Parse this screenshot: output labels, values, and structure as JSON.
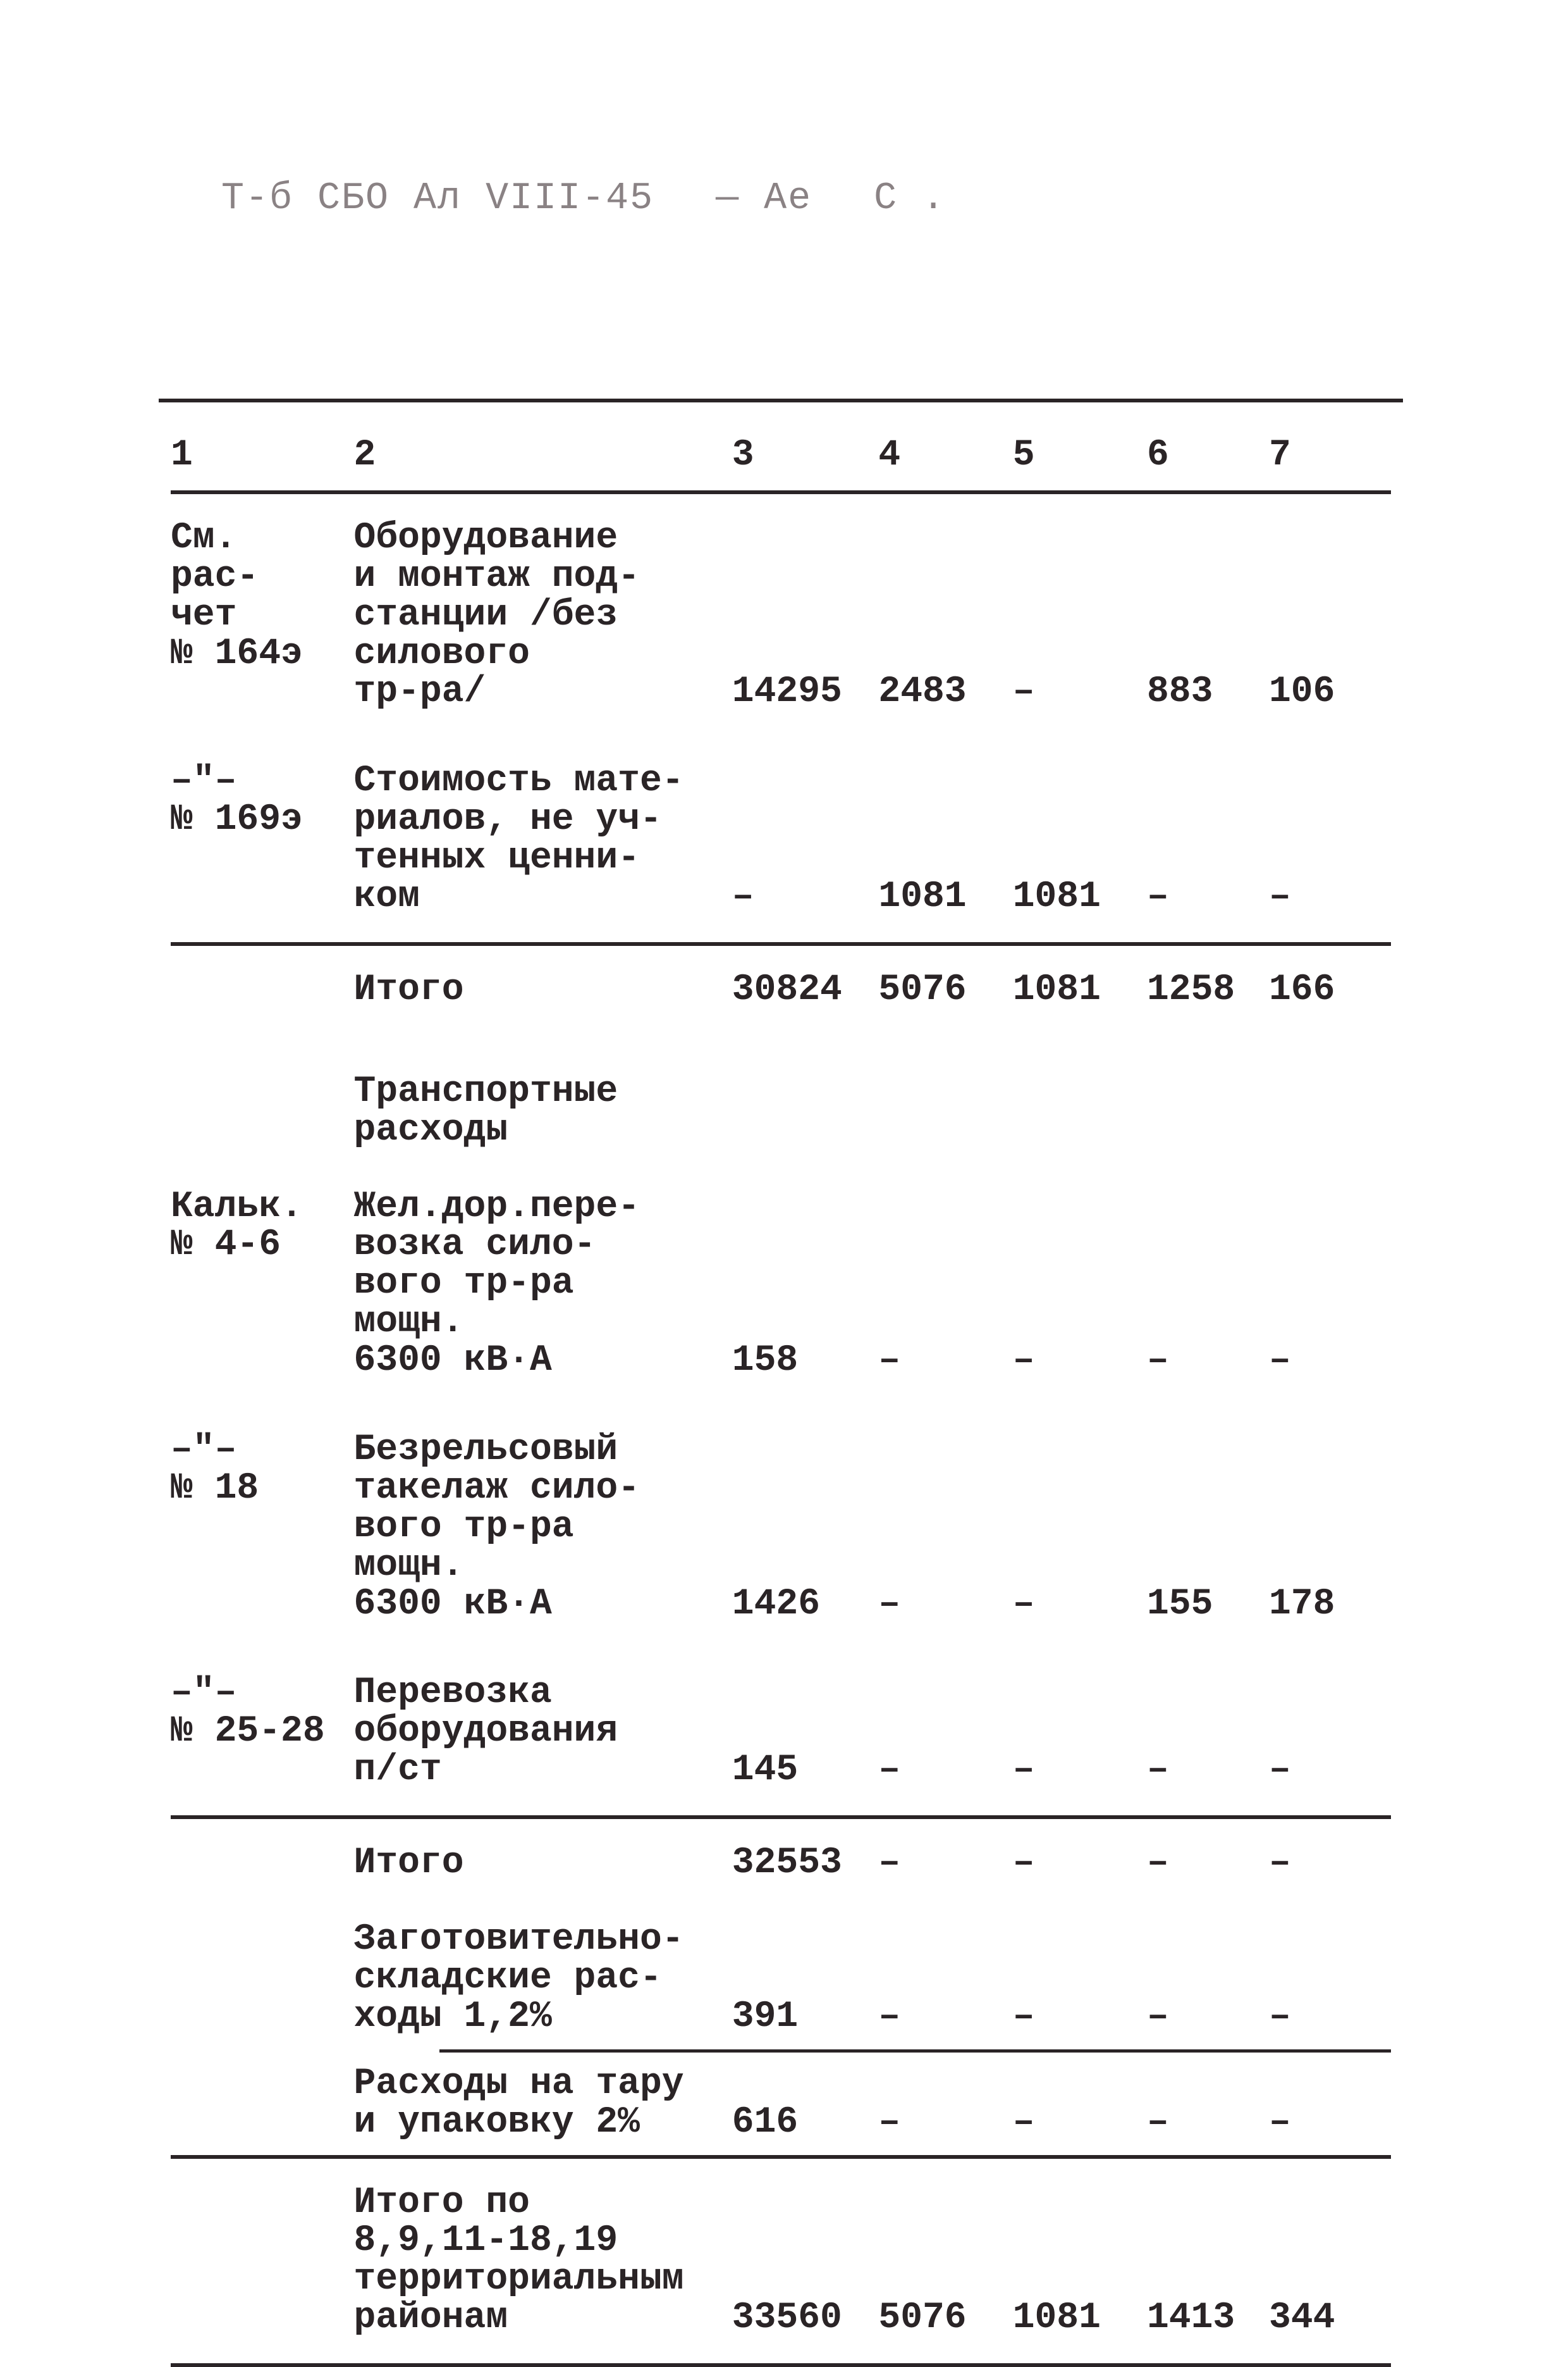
{
  "header": {
    "left": "Т-б СБО Ал VIII-45",
    "mid": "—   Ае",
    "right": "С  ."
  },
  "columns": [
    "1",
    "2",
    "3",
    "4",
    "5",
    "6",
    "7"
  ],
  "rows": [
    {
      "ruleTop": true
    },
    {
      "c1": "См.\nрас-\nчет\n№ 164э",
      "c2": "Оборудование\nи монтаж под-\nстанции /без\nсилового\nтр-ра/",
      "c3": "14295",
      "c4": "2483",
      "c5": "–",
      "c6": "883",
      "c7": "106"
    },
    {
      "c1": "–\"–\n№ 169э",
      "c2": "Стоимость мате-\nриалов, не уч-\nтенных ценни-\nком",
      "c3": "–",
      "c4": "1081",
      "c5": "1081",
      "c6": "–",
      "c7": "–"
    },
    {
      "ruleMid": true
    },
    {
      "c1": "",
      "c2": "Итого",
      "c3": "30824",
      "c4": "5076",
      "c5": "1081",
      "c6": "1258",
      "c7": "166"
    },
    {
      "c1": "",
      "c2": "Транспортные\nрасходы",
      "section": true
    },
    {
      "c1": "Кальк.\n№ 4-6",
      "c2": "Жел.дор.пере-\nвозка сило-\nвого тр-ра\nмощн.\n6300 кВ·А",
      "c3": "158",
      "c4": "–",
      "c5": "–",
      "c6": "–",
      "c7": "–"
    },
    {
      "c1": "–\"–\n№ 18",
      "c2": "Безрельсовый\nтакелаж сило-\nвого тр-ра\nмощн.\n6300 кВ·А",
      "c3": "1426",
      "c4": "–",
      "c5": "–",
      "c6": "155",
      "c7": "178"
    },
    {
      "c1": "–\"–\n№ 25-28",
      "c2": "Перевозка\nоборудования\nп/ст",
      "c3": "145",
      "c4": "–",
      "c5": "–",
      "c6": "–",
      "c7": "–"
    },
    {
      "ruleMid": true
    },
    {
      "c1": "",
      "c2": "Итого",
      "c3": "32553",
      "c4": "–",
      "c5": "–",
      "c6": "–",
      "c7": "–"
    },
    {
      "c1": "",
      "c2": "Заготовительно-\nскладские рас-\nходы 1,2%",
      "c3": "391",
      "c4": "–",
      "c5": "–",
      "c6": "–",
      "c7": "–",
      "tight": true
    },
    {
      "ruleThin": true
    },
    {
      "c1": "",
      "c2": "Расходы на тару\nи упаковку 2%",
      "c3": "616",
      "c4": "–",
      "c5": "–",
      "c6": "–",
      "c7": "–",
      "tight": true
    },
    {
      "ruleMid": true
    },
    {
      "c1": "",
      "c2": "Итого по\n8,9,11-18,19\nтерриториальным\nрайонам",
      "c3": "33560",
      "c4": "5076",
      "c5": "1081",
      "c6": "1413",
      "c7": "344"
    },
    {
      "ruleMid": true
    }
  ]
}
